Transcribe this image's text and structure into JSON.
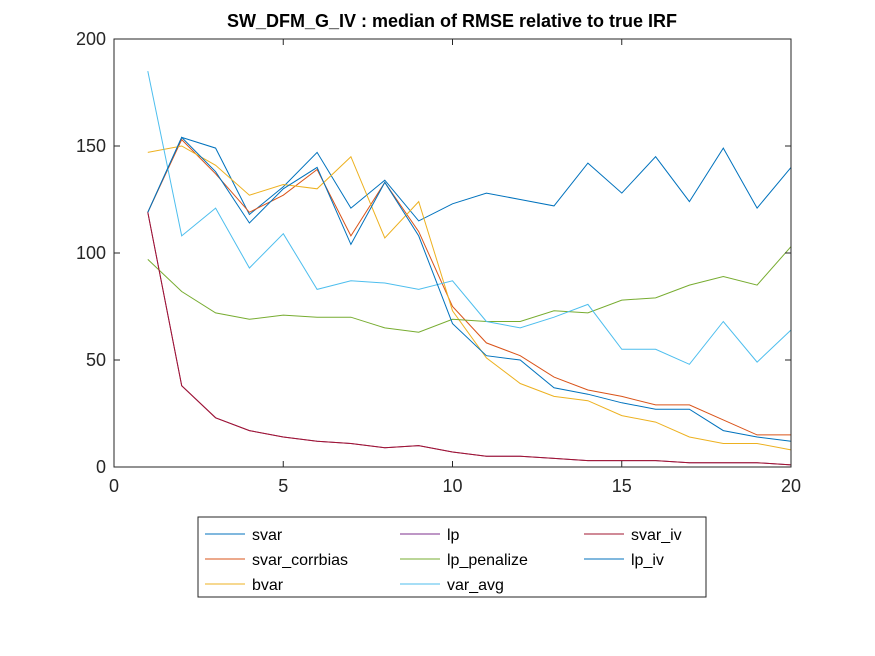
{
  "chart_data": {
    "type": "line",
    "title": "SW_DFM_G_IV : median of RMSE relative to true IRF",
    "xlabel": "",
    "ylabel": "",
    "xlim": [
      0,
      20
    ],
    "ylim": [
      0,
      200
    ],
    "xticks": [
      0,
      5,
      10,
      15,
      20
    ],
    "yticks": [
      0,
      50,
      100,
      150,
      200
    ],
    "xtick_labels": [
      "0",
      "5",
      "10",
      "15",
      "20"
    ],
    "ytick_labels": [
      "0",
      "50",
      "100",
      "150",
      "200"
    ],
    "grid": false,
    "legend_position": "bottom-outside",
    "x": [
      1,
      2,
      3,
      4,
      5,
      6,
      7,
      8,
      9,
      10,
      11,
      12,
      13,
      14,
      15,
      16,
      17,
      18,
      19,
      20
    ],
    "series": [
      {
        "name": "svar",
        "color": "#0072BD",
        "values": [
          119,
          154,
          149,
          118,
          131,
          147,
          121,
          134,
          115,
          123,
          128,
          125,
          122,
          142,
          128,
          145,
          124,
          149,
          121,
          140
        ]
      },
      {
        "name": "svar_corrbias",
        "color": "#D95319",
        "values": [
          119,
          153,
          137,
          119,
          127,
          139,
          108,
          133,
          110,
          75,
          58,
          52,
          42,
          36,
          33,
          29,
          29,
          22,
          15,
          15
        ]
      },
      {
        "name": "bvar",
        "color": "#EDB120",
        "values": [
          147,
          150,
          141,
          127,
          132,
          130,
          145,
          107,
          124,
          73,
          51,
          39,
          33,
          31,
          24,
          21,
          14,
          11,
          11,
          8
        ]
      },
      {
        "name": "lp",
        "color": "#7E2F8E",
        "values": [
          119,
          38,
          23,
          17,
          14,
          12,
          11,
          9,
          10,
          7,
          5,
          5,
          4,
          3,
          3,
          3,
          2,
          2,
          2,
          1
        ]
      },
      {
        "name": "lp_penalize",
        "color": "#77AC30",
        "values": [
          97,
          82,
          72,
          69,
          71,
          70,
          70,
          65,
          63,
          69,
          68,
          68,
          73,
          72,
          78,
          79,
          85,
          89,
          85,
          103
        ]
      },
      {
        "name": "var_avg",
        "color": "#4DBEEE",
        "values": [
          185,
          108,
          121,
          93,
          109,
          83,
          87,
          86,
          83,
          87,
          68,
          65,
          70,
          76,
          55,
          55,
          48,
          68,
          49,
          64
        ]
      },
      {
        "name": "svar_iv",
        "color": "#A2142F",
        "values": [
          119,
          38,
          23,
          17,
          14,
          12,
          11,
          9,
          10,
          7,
          5,
          5,
          4,
          3,
          3,
          3,
          2,
          2,
          2,
          1
        ]
      },
      {
        "name": "lp_iv",
        "color": "#0072BD",
        "values": [
          119,
          154,
          138,
          114,
          130,
          140,
          104,
          133,
          108,
          67,
          52,
          50,
          37,
          34,
          30,
          27,
          27,
          17,
          14,
          12
        ]
      }
    ],
    "legend_entries": [
      "svar",
      "lp",
      "svar_iv",
      "svar_corrbias",
      "lp_penalize",
      "lp_iv",
      "bvar",
      "var_avg"
    ]
  }
}
